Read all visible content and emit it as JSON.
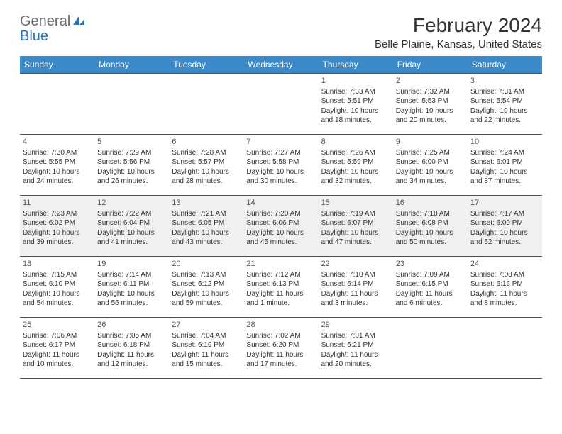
{
  "logo": {
    "text1": "General",
    "text2": "Blue"
  },
  "title": "February 2024",
  "location": "Belle Plaine, Kansas, United States",
  "colors": {
    "header_bg": "#3b89c9",
    "header_text": "#ffffff",
    "border": "#2d5a8a",
    "shaded_row": "#eef0f2",
    "logo_gray": "#6b6b6b",
    "logo_blue": "#2d72b8"
  },
  "weekdays": [
    "Sunday",
    "Monday",
    "Tuesday",
    "Wednesday",
    "Thursday",
    "Friday",
    "Saturday"
  ],
  "weeks": [
    {
      "shaded": false,
      "days": [
        null,
        null,
        null,
        null,
        {
          "n": "1",
          "sr": "Sunrise: 7:33 AM",
          "ss": "Sunset: 5:51 PM",
          "dl1": "Daylight: 10 hours",
          "dl2": "and 18 minutes."
        },
        {
          "n": "2",
          "sr": "Sunrise: 7:32 AM",
          "ss": "Sunset: 5:53 PM",
          "dl1": "Daylight: 10 hours",
          "dl2": "and 20 minutes."
        },
        {
          "n": "3",
          "sr": "Sunrise: 7:31 AM",
          "ss": "Sunset: 5:54 PM",
          "dl1": "Daylight: 10 hours",
          "dl2": "and 22 minutes."
        }
      ]
    },
    {
      "shaded": false,
      "days": [
        {
          "n": "4",
          "sr": "Sunrise: 7:30 AM",
          "ss": "Sunset: 5:55 PM",
          "dl1": "Daylight: 10 hours",
          "dl2": "and 24 minutes."
        },
        {
          "n": "5",
          "sr": "Sunrise: 7:29 AM",
          "ss": "Sunset: 5:56 PM",
          "dl1": "Daylight: 10 hours",
          "dl2": "and 26 minutes."
        },
        {
          "n": "6",
          "sr": "Sunrise: 7:28 AM",
          "ss": "Sunset: 5:57 PM",
          "dl1": "Daylight: 10 hours",
          "dl2": "and 28 minutes."
        },
        {
          "n": "7",
          "sr": "Sunrise: 7:27 AM",
          "ss": "Sunset: 5:58 PM",
          "dl1": "Daylight: 10 hours",
          "dl2": "and 30 minutes."
        },
        {
          "n": "8",
          "sr": "Sunrise: 7:26 AM",
          "ss": "Sunset: 5:59 PM",
          "dl1": "Daylight: 10 hours",
          "dl2": "and 32 minutes."
        },
        {
          "n": "9",
          "sr": "Sunrise: 7:25 AM",
          "ss": "Sunset: 6:00 PM",
          "dl1": "Daylight: 10 hours",
          "dl2": "and 34 minutes."
        },
        {
          "n": "10",
          "sr": "Sunrise: 7:24 AM",
          "ss": "Sunset: 6:01 PM",
          "dl1": "Daylight: 10 hours",
          "dl2": "and 37 minutes."
        }
      ]
    },
    {
      "shaded": true,
      "days": [
        {
          "n": "11",
          "sr": "Sunrise: 7:23 AM",
          "ss": "Sunset: 6:02 PM",
          "dl1": "Daylight: 10 hours",
          "dl2": "and 39 minutes."
        },
        {
          "n": "12",
          "sr": "Sunrise: 7:22 AM",
          "ss": "Sunset: 6:04 PM",
          "dl1": "Daylight: 10 hours",
          "dl2": "and 41 minutes."
        },
        {
          "n": "13",
          "sr": "Sunrise: 7:21 AM",
          "ss": "Sunset: 6:05 PM",
          "dl1": "Daylight: 10 hours",
          "dl2": "and 43 minutes."
        },
        {
          "n": "14",
          "sr": "Sunrise: 7:20 AM",
          "ss": "Sunset: 6:06 PM",
          "dl1": "Daylight: 10 hours",
          "dl2": "and 45 minutes."
        },
        {
          "n": "15",
          "sr": "Sunrise: 7:19 AM",
          "ss": "Sunset: 6:07 PM",
          "dl1": "Daylight: 10 hours",
          "dl2": "and 47 minutes."
        },
        {
          "n": "16",
          "sr": "Sunrise: 7:18 AM",
          "ss": "Sunset: 6:08 PM",
          "dl1": "Daylight: 10 hours",
          "dl2": "and 50 minutes."
        },
        {
          "n": "17",
          "sr": "Sunrise: 7:17 AM",
          "ss": "Sunset: 6:09 PM",
          "dl1": "Daylight: 10 hours",
          "dl2": "and 52 minutes."
        }
      ]
    },
    {
      "shaded": false,
      "days": [
        {
          "n": "18",
          "sr": "Sunrise: 7:15 AM",
          "ss": "Sunset: 6:10 PM",
          "dl1": "Daylight: 10 hours",
          "dl2": "and 54 minutes."
        },
        {
          "n": "19",
          "sr": "Sunrise: 7:14 AM",
          "ss": "Sunset: 6:11 PM",
          "dl1": "Daylight: 10 hours",
          "dl2": "and 56 minutes."
        },
        {
          "n": "20",
          "sr": "Sunrise: 7:13 AM",
          "ss": "Sunset: 6:12 PM",
          "dl1": "Daylight: 10 hours",
          "dl2": "and 59 minutes."
        },
        {
          "n": "21",
          "sr": "Sunrise: 7:12 AM",
          "ss": "Sunset: 6:13 PM",
          "dl1": "Daylight: 11 hours",
          "dl2": "and 1 minute."
        },
        {
          "n": "22",
          "sr": "Sunrise: 7:10 AM",
          "ss": "Sunset: 6:14 PM",
          "dl1": "Daylight: 11 hours",
          "dl2": "and 3 minutes."
        },
        {
          "n": "23",
          "sr": "Sunrise: 7:09 AM",
          "ss": "Sunset: 6:15 PM",
          "dl1": "Daylight: 11 hours",
          "dl2": "and 6 minutes."
        },
        {
          "n": "24",
          "sr": "Sunrise: 7:08 AM",
          "ss": "Sunset: 6:16 PM",
          "dl1": "Daylight: 11 hours",
          "dl2": "and 8 minutes."
        }
      ]
    },
    {
      "shaded": false,
      "days": [
        {
          "n": "25",
          "sr": "Sunrise: 7:06 AM",
          "ss": "Sunset: 6:17 PM",
          "dl1": "Daylight: 11 hours",
          "dl2": "and 10 minutes."
        },
        {
          "n": "26",
          "sr": "Sunrise: 7:05 AM",
          "ss": "Sunset: 6:18 PM",
          "dl1": "Daylight: 11 hours",
          "dl2": "and 12 minutes."
        },
        {
          "n": "27",
          "sr": "Sunrise: 7:04 AM",
          "ss": "Sunset: 6:19 PM",
          "dl1": "Daylight: 11 hours",
          "dl2": "and 15 minutes."
        },
        {
          "n": "28",
          "sr": "Sunrise: 7:02 AM",
          "ss": "Sunset: 6:20 PM",
          "dl1": "Daylight: 11 hours",
          "dl2": "and 17 minutes."
        },
        {
          "n": "29",
          "sr": "Sunrise: 7:01 AM",
          "ss": "Sunset: 6:21 PM",
          "dl1": "Daylight: 11 hours",
          "dl2": "and 20 minutes."
        },
        null,
        null
      ]
    }
  ]
}
